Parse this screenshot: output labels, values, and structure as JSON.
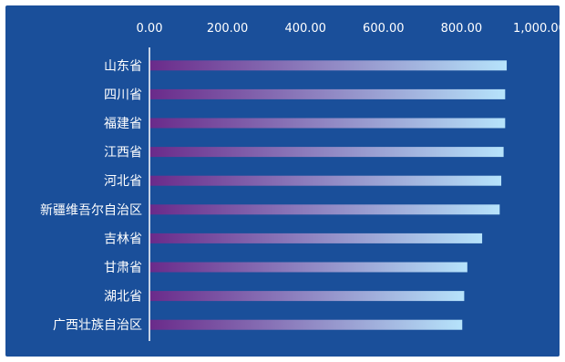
{
  "colors": {
    "background": "#1a4f9a",
    "axis_line": "#ffffff",
    "bar_start": "#6a2a8a",
    "bar_end": "#b6e3fb",
    "text": "#ffffff"
  },
  "chart_data": {
    "type": "bar",
    "orientation": "horizontal",
    "x_axis_position": "top",
    "grid": false,
    "legend": "none",
    "xlim": [
      0,
      1000
    ],
    "xticks": [
      "0.00",
      "200.00",
      "400.00",
      "600.00",
      "800.00",
      "1,000.00"
    ],
    "categories": [
      "山东省",
      "四川省",
      "福建省",
      "江西省",
      "河北省",
      "新疆维吾尔自治区",
      "吉林省",
      "甘肃省",
      "湖北省",
      "广西壮族自治区"
    ],
    "values": [
      916,
      912,
      912,
      908,
      902,
      898,
      853,
      815,
      807,
      802
    ]
  }
}
